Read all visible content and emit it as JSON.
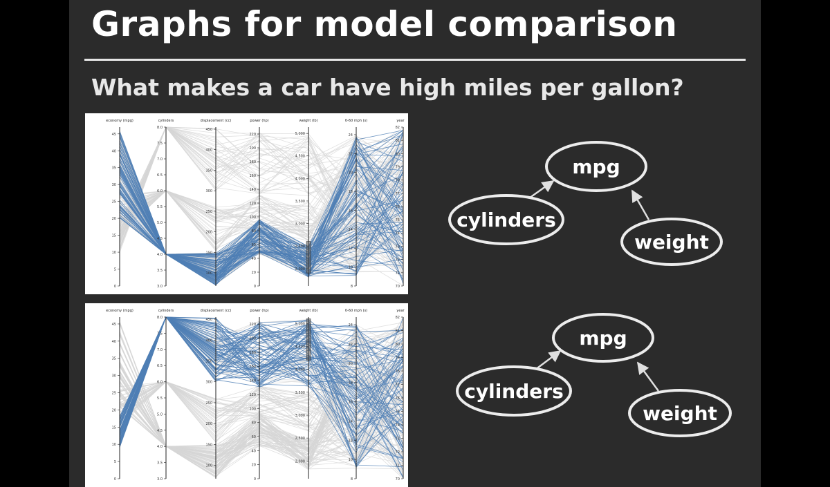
{
  "slide": {
    "title": "Graphs for model comparison",
    "subtitle": "What makes a car have high miles per gallon?"
  },
  "colors": {
    "background": "#2b2b2b",
    "text": "#ffffff",
    "highlight_lines": "#4f7fb5",
    "context_lines": "#d6d6d6"
  },
  "chart_data": [
    {
      "type": "parallel-coordinates",
      "axes": [
        {
          "name": "economy (mpg)",
          "range": [
            0,
            47
          ],
          "ticks": [
            "0",
            "5",
            "10",
            "15",
            "20",
            "25",
            "30",
            "35",
            "40",
            "45"
          ]
        },
        {
          "name": "cylinders",
          "range": [
            3,
            8
          ],
          "ticks": [
            "3.0",
            "3.5",
            "4.0",
            "4.5",
            "5.0",
            "5.5",
            "6.0",
            "6.5",
            "7.0",
            "7.5",
            "8.0"
          ]
        },
        {
          "name": "displacement (cc)",
          "range": [
            68,
            455
          ],
          "ticks": [
            "100",
            "150",
            "200",
            "250",
            "300",
            "350",
            "400",
            "450"
          ]
        },
        {
          "name": "power (hp)",
          "range": [
            0,
            230
          ],
          "ticks": [
            "0",
            "20",
            "40",
            "60",
            "80",
            "100",
            "120",
            "140",
            "160",
            "180",
            "200",
            "220"
          ]
        },
        {
          "name": "weight (lb)",
          "range": [
            1613,
            5140
          ],
          "ticks": [
            "2,000",
            "2,500",
            "3,000",
            "3,500",
            "4,000",
            "4,500",
            "5,000"
          ]
        },
        {
          "name": "0-60 mph (s)",
          "range": [
            8,
            24.8
          ],
          "ticks": [
            "8",
            "10",
            "12",
            "14",
            "16",
            "18",
            "20",
            "22",
            "24"
          ]
        },
        {
          "name": "year",
          "range": [
            70,
            82
          ],
          "ticks": [
            "70",
            "71",
            "72",
            "73",
            "74",
            "75",
            "76",
            "77",
            "78",
            "79",
            "80",
            "81",
            "82"
          ]
        }
      ],
      "brush": {
        "axis": "weight (lb)",
        "range": [
          1900,
          2600
        ]
      }
    },
    {
      "type": "parallel-coordinates",
      "axes": [
        {
          "name": "economy (mpg)",
          "range": [
            0,
            47
          ],
          "ticks": [
            "0",
            "5",
            "10",
            "15",
            "20",
            "25",
            "30",
            "35",
            "40",
            "45"
          ]
        },
        {
          "name": "cylinders",
          "range": [
            3,
            8
          ],
          "ticks": [
            "3.0",
            "3.5",
            "4.0",
            "4.5",
            "5.0",
            "5.5",
            "6.0",
            "6.5",
            "7.0",
            "7.5",
            "8.0"
          ]
        },
        {
          "name": "displacement (cc)",
          "range": [
            68,
            455
          ],
          "ticks": [
            "100",
            "150",
            "200",
            "250",
            "300",
            "350",
            "400",
            "450"
          ]
        },
        {
          "name": "power (hp)",
          "range": [
            0,
            230
          ],
          "ticks": [
            "0",
            "20",
            "40",
            "60",
            "80",
            "100",
            "120",
            "140",
            "160",
            "180",
            "200",
            "220"
          ]
        },
        {
          "name": "weight (lb)",
          "range": [
            1613,
            5140
          ],
          "ticks": [
            "2,000",
            "2,500",
            "3,000",
            "3,500",
            "4,000",
            "4,500",
            "5,000"
          ]
        },
        {
          "name": "0-60 mph (s)",
          "range": [
            8,
            24.8
          ],
          "ticks": [
            "8",
            "10",
            "12",
            "14",
            "16",
            "18",
            "20",
            "22",
            "24"
          ]
        },
        {
          "name": "year",
          "range": [
            70,
            82
          ],
          "ticks": [
            "70",
            "71",
            "72",
            "73",
            "74",
            "75",
            "76",
            "77",
            "78",
            "79",
            "80",
            "81",
            "82"
          ]
        }
      ],
      "brush": {
        "axis": "weight (lb)",
        "range": [
          4200,
          5100
        ]
      }
    }
  ],
  "diagrams": [
    {
      "nodes": [
        {
          "id": "mpg",
          "label": "mpg"
        },
        {
          "id": "cylinders",
          "label": "cylinders"
        },
        {
          "id": "weight",
          "label": "weight"
        }
      ],
      "edges": [
        {
          "from": "cylinders",
          "to": "mpg"
        },
        {
          "from": "weight",
          "to": "mpg"
        }
      ]
    },
    {
      "nodes": [
        {
          "id": "mpg",
          "label": "mpg"
        },
        {
          "id": "cylinders",
          "label": "cylinders"
        },
        {
          "id": "weight",
          "label": "weight"
        }
      ],
      "edges": [
        {
          "from": "cylinders",
          "to": "mpg"
        },
        {
          "from": "weight",
          "to": "mpg"
        }
      ]
    }
  ]
}
